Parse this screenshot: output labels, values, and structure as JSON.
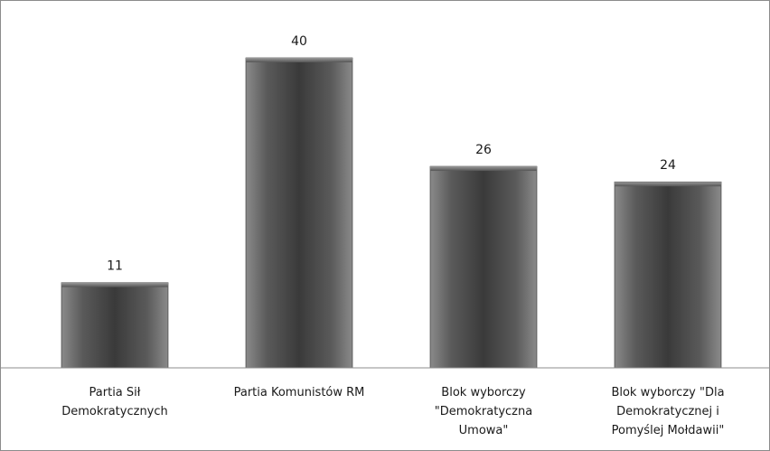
{
  "chart_data": {
    "type": "bar",
    "categories": [
      [
        "Partia Sił",
        "Demokratycznych"
      ],
      [
        "Partia Komunistów RM"
      ],
      [
        "Blok wyborczy",
        "\"Demokratyczna",
        "Umowa\""
      ],
      [
        "Blok wyborczy \"Dla",
        "Demokratycznej i",
        "Pomyślej Mołdawii\""
      ]
    ],
    "values": [
      11,
      40,
      26,
      24
    ],
    "value_labels": [
      "11",
      "40",
      "26",
      "24"
    ],
    "ylim": [
      0,
      45
    ],
    "grid": false,
    "legend": "none",
    "colors": {
      "bar_dark": "#3a3a3a",
      "bar_light": "#8a8a8a",
      "axis": "#8c8c8c"
    }
  }
}
